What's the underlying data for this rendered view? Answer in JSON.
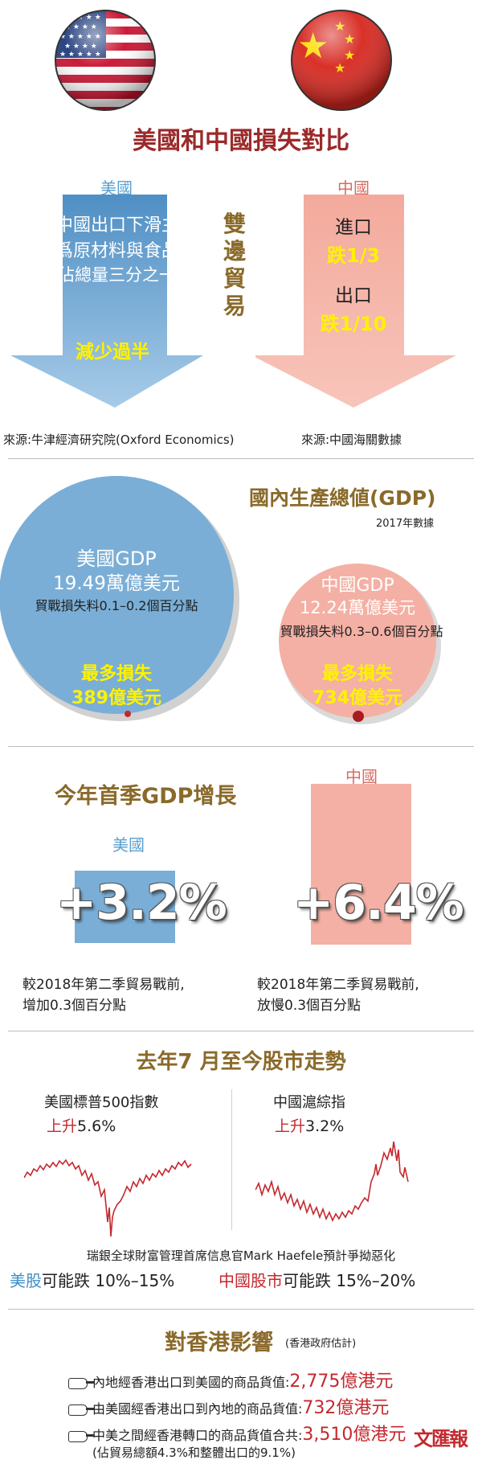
{
  "flags": {
    "us": "us-flag",
    "cn": "china-flag"
  },
  "compare": {
    "title": "美國和中國損失對比",
    "us_label": "美國",
    "cn_label": "中國",
    "us_lines": [
      "對中國出口下滑主",
      "要爲原材料與食品",
      "(約佔總量三分之一)"
    ],
    "us_drop": "減少過半",
    "bilateral": [
      "雙",
      "邊",
      "貿",
      "易"
    ],
    "cn_import_label": "進口",
    "cn_import_value": "跌1/3",
    "cn_export_label": "出口",
    "cn_export_value": "跌1/10",
    "us_source": "來源:牛津經濟研究院(Oxford Economics)",
    "cn_source": "來源:中國海關數據"
  },
  "gdp": {
    "title": "國內生產總値(GDP)",
    "subtitle": "2017年數據",
    "us_name": "美國GDP",
    "us_value": "19.49萬億美元",
    "us_loss_est": "貿戰損失料0.1–0.2個百分點",
    "us_max_label": "最多損失",
    "us_max_value": "389億美元",
    "cn_name": "中國GDP",
    "cn_value": "12.24萬億美元",
    "cn_loss_est": "貿戰損失料0.3–0.6個百分點",
    "cn_max_label": "最多損失",
    "cn_max_value": "734億美元"
  },
  "q1": {
    "title": "今年首季GDP增長",
    "us_label": "美國",
    "cn_label": "中國",
    "us_pct": "+3.2%",
    "cn_pct": "+6.4%",
    "us_note": [
      "較2018年第二季貿易戰前,",
      "增加0.3個百分點"
    ],
    "cn_note": [
      "較2018年第二季貿易戰前,",
      "放慢0.3個百分點"
    ]
  },
  "stock": {
    "title": "去年7 月至今股市走勢",
    "us_index": "美國標普500指數",
    "us_change_word": "上升",
    "us_change_value": "5.6%",
    "cn_index": "中國滬綜指",
    "cn_change_word": "上升",
    "cn_change_value": "3.2%",
    "forecast": "瑞銀全球財富管理首席信息官Mark Haefele預計爭拗惡化",
    "us_market": "美股",
    "us_fall": "可能跌 10%–15%",
    "cn_market": "中國股市",
    "cn_fall": "可能跌 15%–20%"
  },
  "hk": {
    "title": "對香港影響",
    "subtitle": "(香港政府估計)",
    "items": [
      {
        "text": "內地經香港出口到美國的商品貨值:",
        "value": "2,775億港元"
      },
      {
        "text": "由美國經香港出口到內地的商品貨值:",
        "value": "732億港元"
      },
      {
        "text": "中美之間經香港轉口的商品貨值合共:",
        "value": "3,510億港元"
      }
    ],
    "footnote": "(佔貿易總額4.3%和整體出口的9.1%)",
    "logo": "文匯報"
  },
  "colors": {
    "blue": "#7aaed6",
    "pink": "#f4b0a4",
    "gold": "#8a6a2a",
    "red": "#c4282e",
    "yellow": "#fff200",
    "us_line": "#c4282e",
    "cn_line": "#c4282e"
  }
}
